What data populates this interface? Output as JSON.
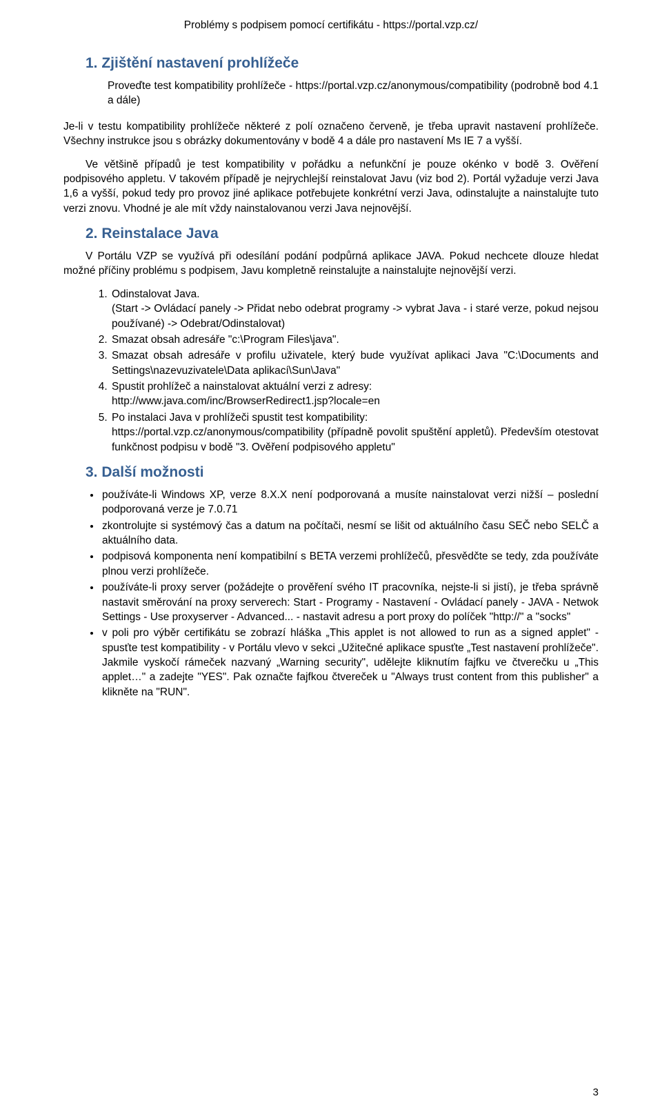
{
  "running_header": "Problémy s podpisem pomocí certifikátu - https://portal.vzp.cz/",
  "section1": {
    "title": "1. Zjištění nastavení prohlížeče",
    "lead": "Proveďte test kompatibility prohlížeče - https://portal.vzp.cz/anonymous/compatibility (podrobně bod 4.1 a dále)",
    "p1": "Je-li v testu kompatibility prohlížeče některé z polí označeno červeně, je třeba upravit nastavení prohlížeče. Všechny instrukce jsou s obrázky dokumentovány v bodě 4 a dále pro nastavení Ms IE  7 a vyšší.",
    "p2": "Ve většině případů je test kompatibility v pořádku a nefunkční je pouze okénko v bodě 3. Ověření podpisového appletu. V takovém případě je nejrychlejší reinstalovat Javu (viz bod 2). Portál vyžaduje verzi Java 1,6 a vyšší, pokud tedy pro provoz jiné aplikace potřebujete konkrétní verzi Java, odinstalujte a nainstalujte tuto verzi znovu. Vhodné je ale mít vždy nainstalovanou verzi Java nejnovější."
  },
  "section2": {
    "title": "2. Reinstalace Java",
    "p1": "V Portálu VZP se využívá při odesílání podání podpůrná aplikace JAVA.  Pokud nechcete dlouze hledat možné příčiny problému s podpisem, Javu kompletně reinstalujte a nainstalujte nejnovější verzi.",
    "items": [
      "Odinstalovat Java.\n(Start -> Ovládací panely -> Přidat nebo odebrat programy -> vybrat Java - i staré verze, pokud nejsou používané) -> Odebrat/Odinstalovat)",
      "Smazat obsah adresáře \"c:\\Program Files\\java\".",
      "Smazat obsah adresáře v profilu uživatele, který bude využívat aplikaci Java \"C:\\Documents and Settings\\nazevuzivatele\\Data aplikací\\Sun\\Java\"",
      "Spustit prohlížeč a nainstalovat aktuální verzi z adresy:\nhttp://www.java.com/inc/BrowserRedirect1.jsp?locale=en",
      "Po instalaci Java v prohlížeči spustit test kompatibility:\nhttps://portal.vzp.cz/anonymous/compatibility  (případně povolit spuštění appletů). Především otestovat funkčnost podpisu v bodě \"3. Ověření podpisového appletu\""
    ]
  },
  "section3": {
    "title": "3. Další možnosti",
    "bullets": [
      "používáte-li Windows XP, verze 8.X.X není podporovaná a musíte nainstalovat verzi nižší – poslední podporovaná verze je 7.0.71",
      "zkontrolujte si systémový čas a datum na počítači, nesmí se lišit od aktuálního času SEČ nebo SELČ a aktuálního data.",
      "podpisová komponenta není kompatibilní s BETA verzemi prohlížečů, přesvědčte se tedy, zda používáte plnou verzi prohlížeče.",
      "používáte-li proxy server (požádejte o prověření svého IT pracovníka, nejste-li si jistí), je třeba správně nastavit směrování na proxy serverech: Start - Programy - Nastavení - Ovládací panely - JAVA - Netwok Settings - Use proxyserver - Advanced... - nastavit adresu a port proxy do políček \"http://\" a \"socks\"",
      "v poli pro výběr certifikátu se zobrazí hláška „This applet is not allowed to run as a signed applet\" - spusťte test kompatibility - v Portálu vlevo v sekci „Užitečné aplikace spusťte „Test nastavení prohlížeče\". Jakmile vyskočí rámeček nazvaný „Warning security\", udělejte kliknutím fajfku ve čtverečku u „This applet…\" a zadejte \"YES\". Pak označte fajfkou čtvereček u \"Always trust content from this publisher\" a klikněte na \"RUN\"."
    ]
  },
  "page_number": "3",
  "colors": {
    "heading": "#365f91",
    "body_text": "#000000",
    "background": "#ffffff"
  },
  "typography": {
    "body_size_pt": 12,
    "heading_size_pt": 16,
    "font_family": "Arial"
  }
}
